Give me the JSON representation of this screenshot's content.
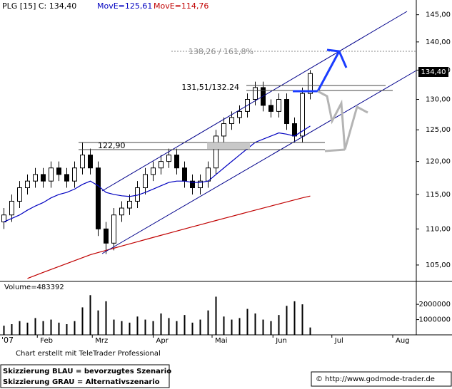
{
  "chart_data": {
    "type": "candlestick",
    "title": "PLG [15] C: 134,40",
    "last_label": "134,40",
    "year_label": "'07",
    "x": [
      14,
      18,
      22,
      26,
      30,
      34,
      38,
      42,
      46,
      50,
      54,
      58,
      62,
      66,
      70,
      74,
      78,
      82,
      86,
      90,
      94,
      98,
      102,
      106,
      110,
      114,
      118,
      122,
      126,
      130,
      134,
      138,
      142,
      146,
      150,
      154,
      158,
      162,
      166,
      170
    ],
    "open": [
      111,
      112,
      114,
      116,
      117,
      118,
      117,
      119,
      118,
      117,
      119,
      121,
      119,
      110,
      108,
      112,
      113,
      114,
      116,
      118,
      119,
      120,
      121,
      119,
      117,
      116,
      117,
      119,
      124,
      126,
      127,
      128,
      130,
      132,
      129,
      128,
      130,
      126,
      124,
      131
    ],
    "high": [
      113,
      115,
      117,
      118,
      119,
      119,
      120,
      120,
      119,
      120,
      123,
      122,
      120,
      111,
      113,
      114,
      115,
      117,
      119,
      120,
      121,
      122,
      122,
      120,
      118,
      118,
      120,
      125,
      127,
      128,
      129,
      131,
      133,
      133,
      130,
      131,
      131,
      127,
      132,
      135
    ],
    "low": [
      110,
      111,
      113,
      115,
      116,
      116,
      116,
      117,
      116,
      116,
      118,
      118,
      109,
      106.5,
      107,
      111,
      112,
      113,
      115,
      117,
      118,
      119,
      118,
      116,
      115,
      115,
      116,
      118,
      123,
      125,
      126,
      127,
      129,
      128,
      127,
      127,
      125,
      123,
      123,
      130
    ],
    "close": [
      112,
      114,
      116,
      117,
      118,
      117,
      119,
      118,
      117,
      119,
      121,
      119,
      110,
      108,
      112,
      113,
      114,
      116,
      118,
      119,
      120,
      121,
      119,
      117,
      116,
      117,
      119,
      124,
      126,
      127,
      128,
      130,
      132,
      129,
      128,
      130,
      126,
      124,
      131,
      134.4
    ],
    "series": [
      {
        "name": "MovE=125,61",
        "color": "#0000c0",
        "values": [
          111,
          111.5,
          112,
          112.7,
          113.3,
          113.8,
          114.5,
          115,
          115.3,
          115.8,
          116.5,
          117,
          116.3,
          115.3,
          115,
          114.8,
          114.7,
          114.9,
          115.3,
          115.8,
          116.3,
          116.8,
          117,
          117,
          116.8,
          116.8,
          117,
          118,
          119,
          120,
          121,
          122,
          123,
          123.5,
          124,
          124.5,
          124.3,
          124,
          124.8,
          125.61
        ]
      },
      {
        "name": "MovE=114,76",
        "color": "#c00000",
        "values": [
          null,
          null,
          null,
          103.2,
          103.6,
          104,
          104.4,
          104.8,
          105.2,
          105.6,
          106,
          106.4,
          106.7,
          107,
          107.3,
          107.6,
          107.9,
          108.2,
          108.5,
          108.8,
          109.1,
          109.4,
          109.7,
          110,
          110.3,
          110.6,
          110.9,
          111.2,
          111.5,
          111.8,
          112.1,
          112.4,
          112.7,
          113,
          113.3,
          113.6,
          113.9,
          114.2,
          114.5,
          114.76
        ]
      }
    ],
    "log_scale": true,
    "ylim": [
      102.8,
      147.1
    ],
    "yticks": [
      {
        "value": 105,
        "label": "105,00"
      },
      {
        "value": 110,
        "label": "110,00"
      },
      {
        "value": 115,
        "label": "115,00"
      },
      {
        "value": 120,
        "label": "120,00"
      },
      {
        "value": 125,
        "label": "125,00"
      },
      {
        "value": 130,
        "label": "130,00"
      },
      {
        "value": 135,
        "label": "135,00"
      },
      {
        "value": 140,
        "label": "140,00"
      },
      {
        "value": 145,
        "label": "145,00"
      }
    ],
    "xlim": [
      12,
      224
    ],
    "xticks": [
      {
        "value": 31,
        "label": "Feb"
      },
      {
        "value": 59,
        "label": "Mrz"
      },
      {
        "value": 90,
        "label": "Apr"
      },
      {
        "value": 120,
        "label": "Mai"
      },
      {
        "value": 151,
        "label": "Jun"
      },
      {
        "value": 181,
        "label": "Jul"
      },
      {
        "value": 212,
        "label": "Aug"
      }
    ],
    "annotations": [
      "138,26 / 161,8%",
      "131,51/132.24",
      "122,90"
    ],
    "volume_label": "Volume=483392",
    "volume": [
      600000,
      700000,
      900000,
      800000,
      1100000,
      900000,
      1000000,
      800000,
      700000,
      900000,
      1800000,
      2600000,
      1600000,
      2200000,
      1000000,
      900000,
      800000,
      1200000,
      1000000,
      900000,
      1400000,
      1100000,
      900000,
      1300000,
      800000,
      1000000,
      1600000,
      2500000,
      1200000,
      1000000,
      1100000,
      1700000,
      1400000,
      1000000,
      900000,
      1300000,
      1900000,
      2200000,
      2000000,
      483392
    ],
    "volume_ylim": [
      0,
      2800000
    ],
    "volume_yticks": [
      1000000,
      2000000
    ]
  },
  "footer": {
    "credit": "Chart erstellt mit TeleTrader Professional",
    "legend_blue": "Skizzierung BLAU = bevorzugtes Szenario",
    "legend_grey": "Skizzierung GRAU = Alternativszenario",
    "copyright": "© http://www.godmode-trader.de"
  }
}
